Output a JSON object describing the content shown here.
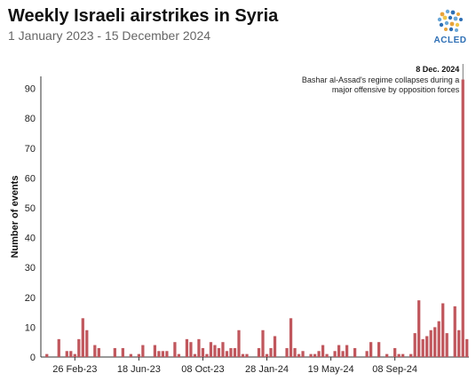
{
  "header": {
    "title": "Weekly Israeli airstrikes in Syria",
    "subtitle": "1 January 2023 - 15 December 2024"
  },
  "logo": {
    "text": "ACLED",
    "icon": "acled-globe-icon"
  },
  "chart_data": {
    "type": "bar",
    "ylabel": "Number of events",
    "ylim": [
      0,
      100
    ],
    "yticks": [
      0,
      10,
      20,
      30,
      40,
      50,
      60,
      70,
      80,
      90
    ],
    "grid": false,
    "bar_color": "#c0575d",
    "xtick_labels": [
      {
        "label": "26 Feb-23",
        "week_index": 8
      },
      {
        "label": "18 Jun-23",
        "week_index": 24
      },
      {
        "label": "08 Oct-23",
        "week_index": 40
      },
      {
        "label": "28 Jan-24",
        "week_index": 56
      },
      {
        "label": "19 May-24",
        "week_index": 72
      },
      {
        "label": "08 Sep-24",
        "week_index": 88
      }
    ],
    "values": [
      0,
      1,
      0,
      0,
      6,
      0,
      2,
      2,
      1,
      6,
      13,
      9,
      0,
      4,
      3,
      0,
      0,
      0,
      3,
      0,
      3,
      0,
      1,
      0,
      1,
      4,
      0,
      0,
      4,
      2,
      2,
      2,
      0,
      5,
      1,
      0,
      6,
      5,
      1,
      6,
      3,
      1,
      5,
      4,
      3,
      5,
      2,
      3,
      3,
      9,
      1,
      1,
      0,
      0,
      3,
      9,
      1,
      3,
      7,
      0,
      0,
      3,
      13,
      3,
      1,
      2,
      0,
      1,
      1,
      2,
      4,
      1,
      0,
      2,
      4,
      2,
      4,
      0,
      3,
      0,
      0,
      2,
      5,
      0,
      5,
      0,
      1,
      0,
      3,
      1,
      1,
      0,
      1,
      8,
      19,
      6,
      7,
      9,
      10,
      12,
      18,
      8,
      0,
      17,
      9,
      93,
      6
    ],
    "annotation": {
      "title": "8 Dec. 2024",
      "lines": [
        "Bashar al-Assad's regime collapses during a",
        "major offensive by opposition forces"
      ],
      "week_index": 105
    }
  }
}
